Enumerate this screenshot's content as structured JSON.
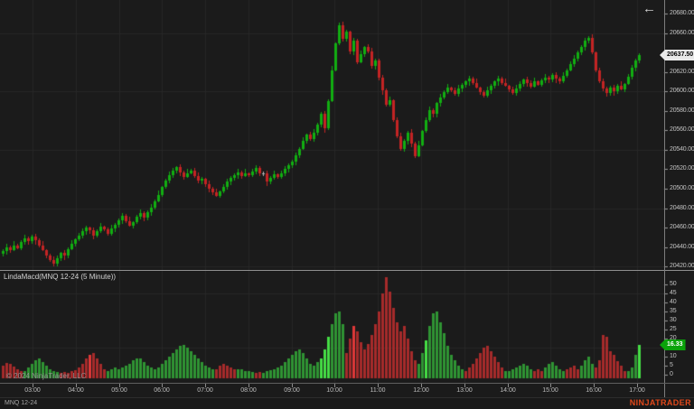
{
  "window": {
    "back_arrow_icon": "←",
    "brand": "NINJATRADER",
    "copyright": "© 2024 NinjaTrader, LLC",
    "instrument_tab": "MNQ 12-24"
  },
  "price_panel": {
    "last_price": "20637.50"
  },
  "indicator_panel": {
    "label": "LindaMacd(MNQ 12-24 (5 Minute))",
    "last_value": "16.33"
  },
  "colors": {
    "background": "#1b1b1b",
    "grid": "#272727",
    "candle_up": "#12ae12",
    "candle_down": "#c32424",
    "candle_doji": "#b5b5b5",
    "hist_green": "#2f9433",
    "hist_green_bright": "#45de45",
    "hist_red": "#a62b2b",
    "hist_red_bright": "#de3838",
    "last_price_marker_bg": "#e9e9e9",
    "last_value_marker_bg": "#0aa30a",
    "axis_text": "#c2c2c2",
    "brand": "#e2481a"
  },
  "chart_data": [
    {
      "type": "candlestick",
      "name": "MNQ 12-24 (5 Minute)",
      "x_tick_labels": [
        "03:00",
        "04:00",
        "05:00",
        "06:00",
        "07:00",
        "08:00",
        "09:00",
        "10:00",
        "11:00",
        "12:00",
        "13:00",
        "14:00",
        "15:00",
        "16:00",
        "17:00"
      ],
      "bars_per_hour": 12,
      "y_axis_ticks": [
        20680,
        20660,
        20620,
        20600,
        20580,
        20560,
        20540,
        20520,
        20500,
        20480,
        20460,
        20440,
        20420
      ],
      "grid_levels": [
        20660,
        20600,
        20540,
        20480,
        20420
      ],
      "ylim": [
        20413,
        20694
      ],
      "last_price": 20637.5,
      "first_open": 20433,
      "closes": [
        20436,
        20440,
        20437,
        20442,
        20439,
        20445,
        20449,
        20446,
        20451,
        20447,
        20442,
        20437,
        20431,
        20427,
        20423,
        20429,
        20434,
        20431,
        20438,
        20443,
        20448,
        20452,
        20456,
        20460,
        20457,
        20452,
        20456,
        20461,
        20458,
        20454,
        20459,
        20463,
        20468,
        20472,
        20467,
        20462,
        20466,
        20471,
        20475,
        20470,
        20476,
        20481,
        20487,
        20494,
        20502,
        20508,
        20514,
        20519,
        20522,
        20517,
        20512,
        20516,
        20519,
        20513,
        20508,
        20510,
        20505,
        20500,
        20496,
        20493,
        20497,
        20502,
        20507,
        20511,
        20514,
        20517,
        20513,
        20516,
        20514,
        20518,
        20521,
        20516,
        20516,
        20507,
        20511,
        20515,
        20512,
        20516,
        20520,
        20524,
        20528,
        20534,
        20541,
        20549,
        20556,
        20551,
        20558,
        20566,
        20577,
        20562,
        20590,
        20622,
        20649,
        20668,
        20654,
        20661,
        20641,
        20652,
        20630,
        20638,
        20646,
        20641,
        20626,
        20632,
        20614,
        20601,
        20586,
        20591,
        20571,
        20554,
        20541,
        20549,
        20558,
        20546,
        20533,
        20545,
        20559,
        20571,
        20581,
        20577,
        20588,
        20594,
        20599,
        20604,
        20601,
        20597,
        20603,
        20607,
        20610,
        20613,
        20609,
        20604,
        20599,
        20596,
        20601,
        20606,
        20610,
        20613,
        20609,
        20606,
        20602,
        20598,
        20603,
        20608,
        20612,
        20609,
        20605,
        20610,
        20607,
        20611,
        20614,
        20612,
        20617,
        20613,
        20610,
        20616,
        20622,
        20628,
        20634,
        20640,
        20646,
        20652,
        20655,
        20640,
        20622,
        20610,
        20603,
        20598,
        20604,
        20600,
        20606,
        20602,
        20608,
        20615,
        20624,
        20632,
        20637.5
      ]
    },
    {
      "type": "bar",
      "name": "LindaMacd(MNQ 12-24 (5 Minute))",
      "y_axis_ticks": [
        50,
        45,
        40,
        35,
        30,
        25,
        20,
        10,
        5,
        0
      ],
      "grid_levels": [
        45,
        15
      ],
      "ylim": [
        0,
        55
      ],
      "last_value": 16.33,
      "values": [
        5,
        6.5,
        6,
        4.5,
        3,
        2,
        2,
        4,
        6,
        8,
        9,
        7,
        5,
        3,
        2,
        1.5,
        1,
        1.5,
        1,
        2,
        2.5,
        4,
        6,
        9,
        11,
        12,
        9,
        6,
        3,
        2,
        3,
        4,
        3,
        4,
        5,
        6,
        8,
        9,
        9,
        7,
        5,
        4,
        3,
        4,
        6,
        8,
        10,
        12,
        14,
        16,
        16.5,
        15,
        13,
        11,
        9,
        7,
        5,
        4,
        3,
        3,
        5,
        6,
        5,
        4,
        3,
        3,
        3,
        2,
        2,
        1.5,
        1,
        1.5,
        1,
        2,
        2.5,
        3,
        4,
        5,
        7,
        9,
        11,
        13,
        14,
        12,
        9,
        6,
        5,
        7,
        9,
        14,
        21,
        28,
        34,
        35,
        28,
        12,
        20,
        27,
        24,
        18,
        14,
        17,
        22,
        28,
        35,
        45,
        54,
        46,
        37,
        29,
        24,
        27,
        20,
        13,
        8,
        6,
        12,
        19,
        27,
        34,
        35,
        29,
        23,
        16,
        11,
        8,
        5,
        3,
        2,
        4,
        6,
        9,
        12,
        15,
        16,
        13,
        10,
        7,
        4,
        2,
        2,
        3,
        4,
        5,
        6,
        5,
        3,
        2,
        3,
        2,
        4,
        6,
        7,
        5,
        3,
        2,
        3,
        4,
        5,
        3,
        5,
        8,
        10,
        6,
        4,
        8,
        22,
        21,
        13,
        11,
        7.5,
        5,
        2,
        2,
        4,
        11,
        16.33
      ],
      "tone_segments": [
        [
          6,
          "r"
        ],
        [
          7,
          "g"
        ],
        [
          3,
          "g"
        ],
        [
          5,
          "r"
        ],
        [
          3,
          "r"
        ],
        [
          1,
          "R"
        ],
        [
          3,
          "r"
        ],
        [
          1,
          "r"
        ],
        [
          3,
          "g"
        ],
        [
          3,
          "g"
        ],
        [
          7,
          "g"
        ],
        [
          4,
          "g"
        ],
        [
          13,
          "g"
        ],
        [
          6,
          "r"
        ],
        [
          5,
          "g"
        ],
        [
          2,
          "r"
        ],
        [
          3,
          "g"
        ],
        [
          10,
          "g"
        ],
        [
          3,
          "g"
        ],
        [
          3,
          "G"
        ],
        [
          4,
          "g"
        ],
        [
          2,
          "r"
        ],
        [
          1,
          "R"
        ],
        [
          8,
          "r"
        ],
        [
          9,
          "r"
        ],
        [
          2,
          "g"
        ],
        [
          1,
          "G"
        ],
        [
          7,
          "g"
        ],
        [
          3,
          "g"
        ],
        [
          2,
          "r"
        ],
        [
          9,
          "r"
        ],
        [
          3,
          "g"
        ],
        [
          5,
          "g"
        ],
        [
          3,
          "r"
        ],
        [
          6,
          "g"
        ],
        [
          4,
          "r"
        ],
        [
          4,
          "g"
        ],
        [
          9,
          "r"
        ],
        [
          3,
          "g"
        ],
        [
          1,
          "G"
        ]
      ]
    }
  ]
}
